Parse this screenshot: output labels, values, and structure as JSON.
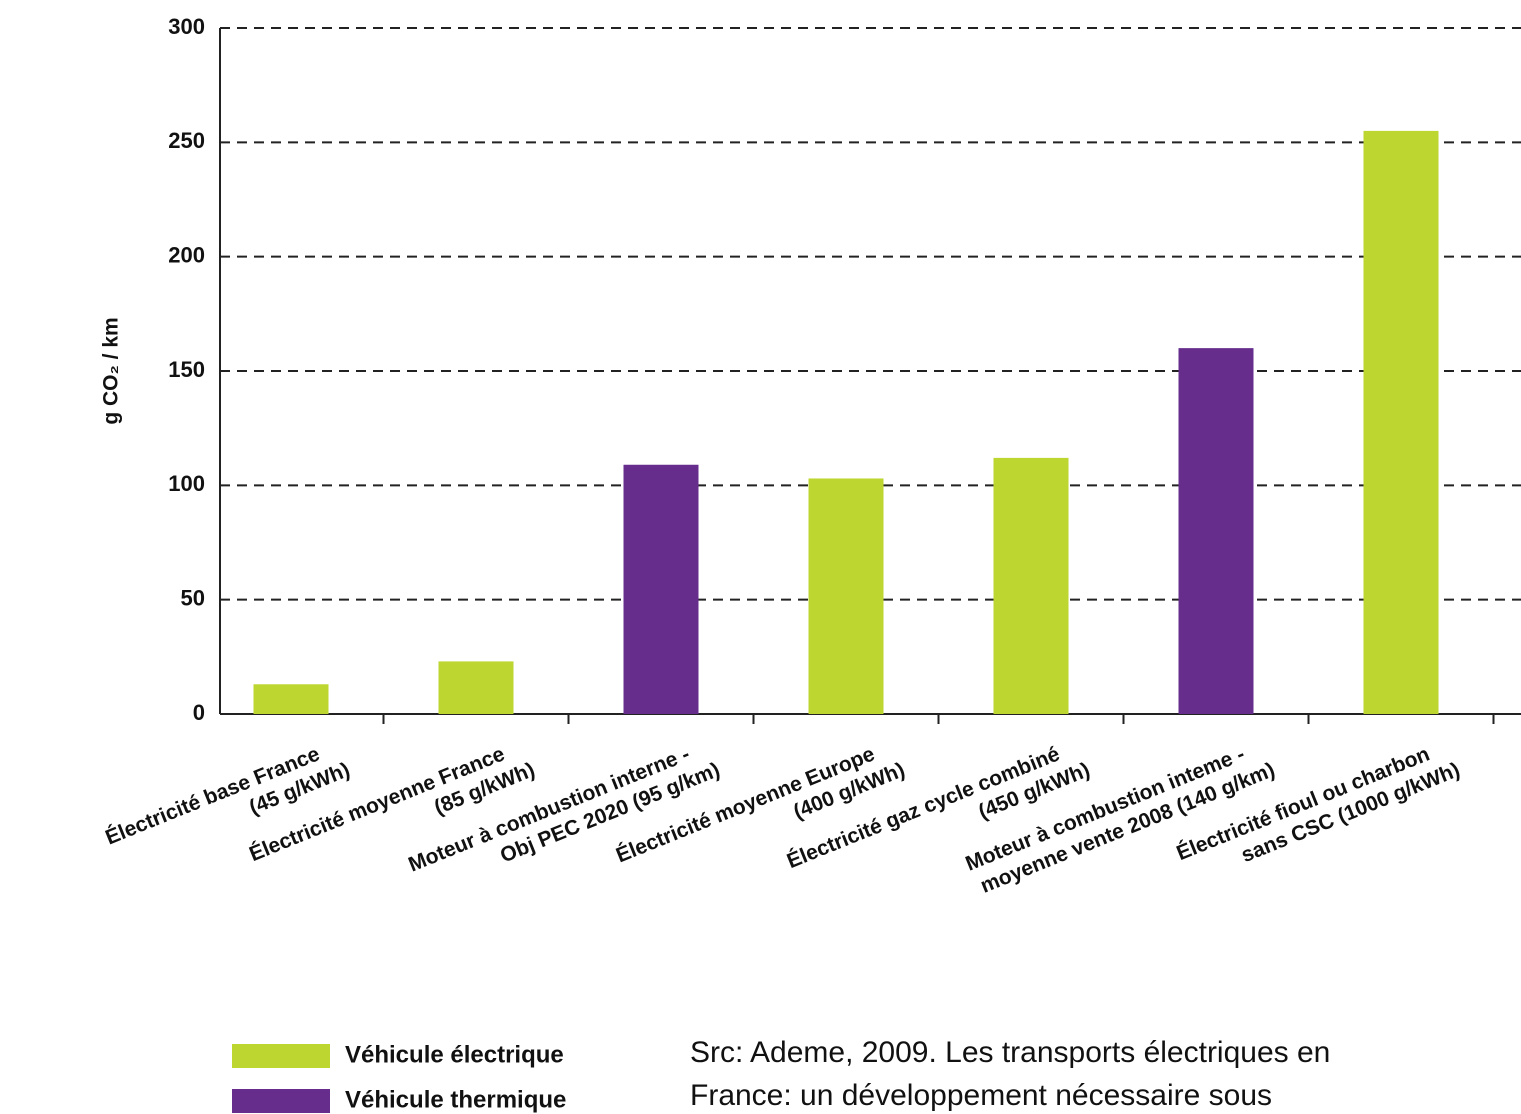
{
  "chart_data": {
    "type": "bar",
    "ylabel": "g CO₂ / km",
    "categories": [
      [
        "Électricité base France",
        "(45 g/kWh)"
      ],
      [
        "Électricité moyenne France",
        "(85 g/kWh)"
      ],
      [
        "Moteur à combustion interne -",
        "Obj PEC 2020 (95 g/km)"
      ],
      [
        "Électricité moyenne Europe",
        "(400 g/kWh)"
      ],
      [
        "Électricité gaz cycle combiné",
        "(450 g/kWh)"
      ],
      [
        "Moteur à combustion inteme -",
        "moyenne vente 2008 (140 g/km)"
      ],
      [
        "Électricité fioul ou charbon",
        "sans CSC (1000 g/kWh)"
      ]
    ],
    "series": [
      {
        "name": "Véhicule électrique",
        "color": "#bdd630",
        "values": [
          13,
          23,
          null,
          103,
          112,
          null,
          255
        ]
      },
      {
        "name": "Véhicule thermique",
        "color": "#662d8c",
        "values": [
          null,
          null,
          109,
          null,
          null,
          160,
          null
        ]
      }
    ],
    "ylim": [
      0,
      300
    ],
    "yticks": [
      0,
      50,
      100,
      150,
      200,
      250,
      300
    ],
    "grid": true,
    "note": [
      "Src: Ademe, 2009. Les transports électriques en",
      "France: un développement nécessaire sous"
    ]
  }
}
